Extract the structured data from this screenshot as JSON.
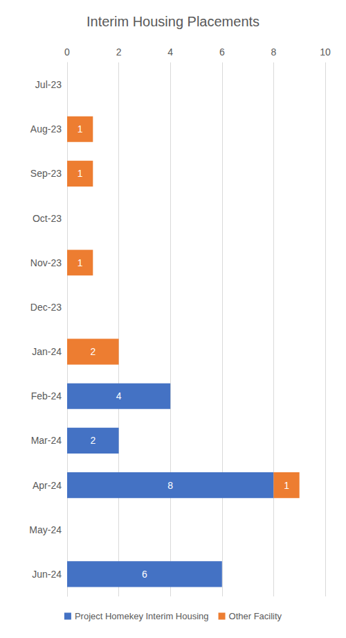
{
  "chart_data": {
    "type": "bar",
    "title": "Interim Housing Placements",
    "orientation": "horizontal",
    "stacked": true,
    "data_labels": true,
    "grid": true,
    "legend": "bottom",
    "categories": [
      "Jul-23",
      "Aug-23",
      "Sep-23",
      "Oct-23",
      "Nov-23",
      "Dec-23",
      "Jan-24",
      "Feb-24",
      "Mar-24",
      "Apr-24",
      "May-24",
      "Jun-24"
    ],
    "series": [
      {
        "name": "Project Homekey Interim Housing",
        "color": "#4472c4",
        "values": [
          null,
          null,
          null,
          null,
          null,
          null,
          null,
          4,
          2,
          8,
          null,
          6
        ]
      },
      {
        "name": "Other Facility",
        "color": "#ed7d31",
        "values": [
          null,
          1,
          1,
          null,
          1,
          null,
          2,
          null,
          null,
          1,
          null,
          null
        ]
      }
    ],
    "xlim": [
      0,
      10
    ],
    "xticks": [
      0,
      2,
      4,
      6,
      8,
      10
    ]
  }
}
